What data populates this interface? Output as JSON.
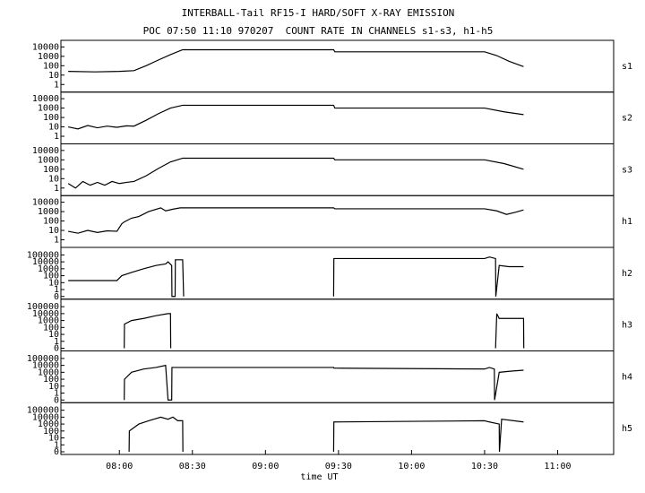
{
  "header": {
    "title": "INTERBALL-Tail RF15-I HARD/SOFT X-RAY EMISSION",
    "subtitle": "POC 07:50 11:10 970207  COUNT RATE IN CHANNELS s1-s3, h1-h5"
  },
  "chart_data": [
    {
      "type": "line",
      "name": "s1",
      "color": "#000000",
      "log_y": true,
      "xlim": [
        456,
        683
      ],
      "ylim": [
        0.3,
        26000
      ],
      "yticks": [
        1,
        10,
        100,
        1000,
        10000
      ],
      "x": [
        459,
        470,
        480,
        486,
        491,
        496,
        501,
        506,
        540,
        568,
        568.5,
        600,
        630,
        635,
        640,
        646
      ],
      "values": [
        25,
        22,
        25,
        30,
        100,
        400,
        1500,
        5000,
        5000,
        5000,
        3000,
        3000,
        3000,
        1200,
        300,
        80
      ]
    },
    {
      "type": "line",
      "name": "s2",
      "color": "#000000",
      "log_y": true,
      "xlim": [
        456,
        683
      ],
      "ylim": [
        0.3,
        26000
      ],
      "yticks": [
        1,
        10,
        100,
        1000,
        10000
      ],
      "x": [
        459,
        463,
        467,
        471,
        475,
        479,
        483,
        486,
        491,
        496,
        501,
        506,
        568,
        568.5,
        630,
        638,
        646
      ],
      "values": [
        10,
        6,
        14,
        8,
        12,
        9,
        13,
        12,
        50,
        250,
        1000,
        2000,
        2000,
        1000,
        1000,
        400,
        200
      ]
    },
    {
      "type": "line",
      "name": "s3",
      "color": "#000000",
      "log_y": true,
      "xlim": [
        456,
        683
      ],
      "ylim": [
        0.3,
        26000
      ],
      "yticks": [
        1,
        10,
        100,
        1000,
        10000
      ],
      "x": [
        459,
        462,
        465,
        468,
        471,
        474,
        477,
        480,
        483,
        486,
        491,
        496,
        501,
        506,
        568,
        568.5,
        630,
        638,
        646
      ],
      "values": [
        3,
        1,
        5,
        2,
        4,
        2,
        5,
        3,
        4,
        5,
        20,
        120,
        600,
        1500,
        1500,
        1000,
        1000,
        400,
        100
      ]
    },
    {
      "type": "line",
      "name": "h1",
      "color": "#000000",
      "log_y": true,
      "xlim": [
        456,
        683
      ],
      "ylim": [
        0.3,
        26000
      ],
      "yticks": [
        1,
        10,
        100,
        1000,
        10000
      ],
      "x": [
        459,
        463,
        467,
        471,
        475,
        479,
        481,
        482,
        485,
        488,
        492,
        497,
        499,
        502,
        505,
        510,
        568,
        568.5,
        630,
        635,
        639,
        643,
        646
      ],
      "values": [
        8,
        5,
        10,
        6,
        9,
        8,
        50,
        80,
        200,
        300,
        1000,
        2500,
        1200,
        1800,
        2500,
        2500,
        2500,
        2000,
        2000,
        1200,
        500,
        900,
        1500
      ]
    },
    {
      "type": "line",
      "name": "h2",
      "color": "#000000",
      "log_y": true,
      "xlim": [
        456,
        683
      ],
      "ylim": [
        0,
        500000
      ],
      "yticks": [
        0,
        1,
        10,
        100,
        1000,
        10000,
        100000
      ],
      "x": [
        459,
        479,
        481,
        485,
        490,
        495,
        499,
        500,
        501.5,
        501.6,
        502.9,
        503,
        506,
        506.4,
        537,
        568,
        568.1,
        630,
        632,
        634.5,
        634.6,
        636,
        640,
        646
      ],
      "values": [
        20,
        20,
        100,
        300,
        1000,
        3000,
        5000,
        10000,
        3000,
        0,
        0,
        20000,
        20000,
        0,
        null,
        0,
        30000,
        30000,
        50000,
        30000,
        0,
        3000,
        2000,
        2000
      ]
    },
    {
      "type": "line",
      "name": "h3",
      "color": "#000000",
      "log_y": true,
      "xlim": [
        456,
        683
      ],
      "ylim": [
        0,
        500000
      ],
      "yticks": [
        0,
        1,
        10,
        100,
        1000,
        10000,
        100000
      ],
      "x": [
        482,
        482.1,
        485,
        490,
        495,
        500,
        501,
        501.1,
        537,
        634.5,
        635,
        636,
        640,
        646,
        646.1
      ],
      "values": [
        0,
        300,
        1000,
        2000,
        5000,
        10000,
        10000,
        0,
        null,
        0,
        10000,
        2000,
        2000,
        2000,
        0
      ]
    },
    {
      "type": "line",
      "name": "h4",
      "color": "#000000",
      "log_y": true,
      "xlim": [
        456,
        683
      ],
      "ylim": [
        0,
        500000
      ],
      "yticks": [
        0,
        1,
        10,
        100,
        1000,
        10000,
        100000
      ],
      "x": [
        482,
        482.1,
        485,
        490,
        495,
        499,
        500,
        501.5,
        501.6,
        568,
        568.1,
        630,
        632,
        634,
        634.1,
        636,
        641,
        646
      ],
      "values": [
        0,
        100,
        1000,
        3000,
        5000,
        10000,
        0,
        0,
        5000,
        5000,
        4000,
        3000,
        5000,
        3000,
        0,
        1000,
        1500,
        2000
      ]
    },
    {
      "type": "line",
      "name": "h5",
      "color": "#000000",
      "log_y": true,
      "xlim": [
        456,
        683
      ],
      "ylim": [
        0,
        500000
      ],
      "yticks": [
        0,
        1,
        10,
        100,
        1000,
        10000,
        100000
      ],
      "xlabel": "time UT",
      "xticks": [
        {
          "value": 480,
          "label": "08:00"
        },
        {
          "value": 510,
          "label": "08:30"
        },
        {
          "value": 540,
          "label": "09:00"
        },
        {
          "value": 570,
          "label": "09:30"
        },
        {
          "value": 600,
          "label": "10:00"
        },
        {
          "value": 630,
          "label": "10:30"
        },
        {
          "value": 660,
          "label": "11:00"
        }
      ],
      "x": [
        484,
        484.1,
        488,
        492,
        497,
        500,
        502,
        504,
        506,
        506.1,
        537,
        568,
        568.1,
        630,
        632,
        636,
        636.1,
        637,
        646
      ],
      "values": [
        0,
        100,
        1000,
        3000,
        10000,
        5000,
        10000,
        3000,
        3000,
        0,
        null,
        0,
        2000,
        3000,
        2000,
        1000,
        0,
        5000,
        2000
      ]
    }
  ]
}
